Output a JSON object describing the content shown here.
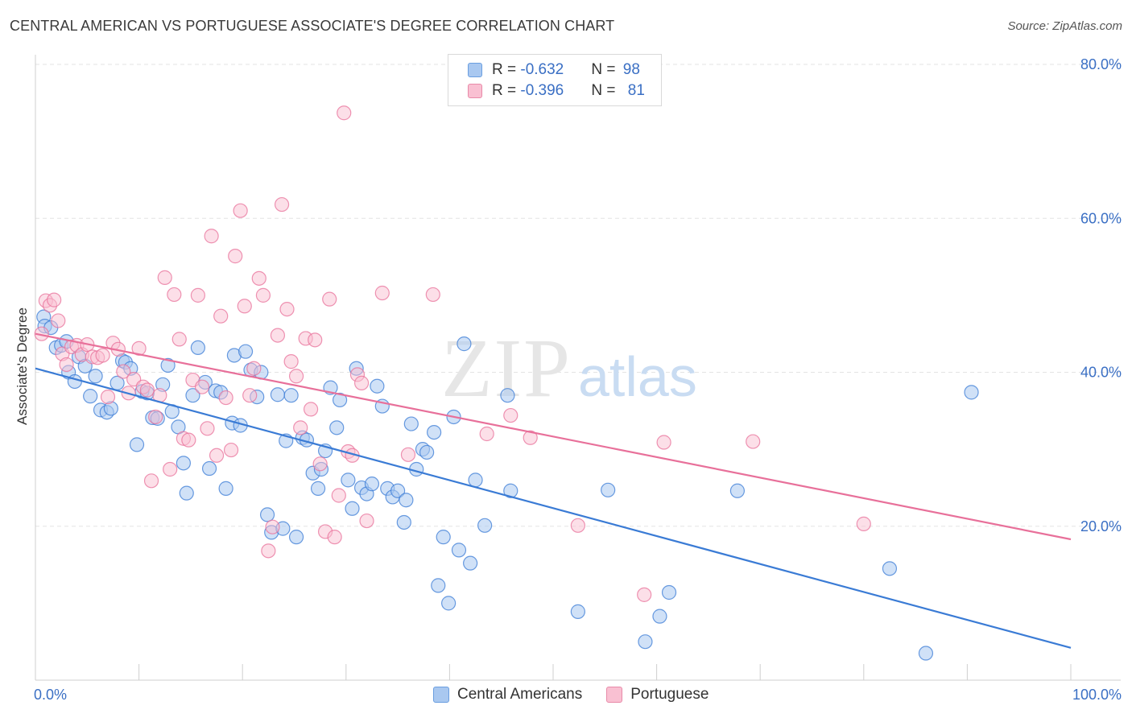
{
  "title": "CENTRAL AMERICAN VS PORTUGUESE ASSOCIATE'S DEGREE CORRELATION CHART",
  "source": "Source: ZipAtlas.com",
  "watermark": {
    "zip": "ZIP",
    "atlas": "atlas"
  },
  "legend_stats": [
    {
      "r_label": "R = ",
      "r_value": "-0.632",
      "n_label": "N = ",
      "n_value": "98",
      "color": "#a9c8f0",
      "border": "#6a9ee0"
    },
    {
      "r_label": "R = ",
      "r_value": "-0.396",
      "n_label": "N = ",
      "n_value": "81",
      "color": "#f9c0d2",
      "border": "#e88aa8"
    }
  ],
  "chart_data": {
    "type": "scatter",
    "title": "CENTRAL AMERICAN VS PORTUGUESE ASSOCIATE'S DEGREE CORRELATION CHART",
    "xlabel": "",
    "ylabel": "Associate's Degree",
    "xlim": [
      0,
      100
    ],
    "ylim": [
      0,
      80
    ],
    "x_tick_labels": [
      "0.0%",
      "100.0%"
    ],
    "y_ticks": [
      20,
      40,
      60,
      80
    ],
    "y_tick_labels": [
      "20.0%",
      "40.0%",
      "60.0%",
      "80.0%"
    ],
    "grid": true,
    "legend_position": "top-center and bottom",
    "series": [
      {
        "name": "Central Americans",
        "color": "#3a7bd5",
        "fill": "#a9c8f0",
        "trend": {
          "x": [
            0,
            100
          ],
          "y": [
            40.5,
            4.2
          ]
        },
        "points": [
          [
            0.8,
            47.2
          ],
          [
            0.9,
            46.0
          ],
          [
            1.5,
            45.8
          ],
          [
            2.0,
            43.2
          ],
          [
            2.5,
            43.5
          ],
          [
            3.0,
            44.0
          ],
          [
            3.2,
            40.0
          ],
          [
            3.8,
            38.8
          ],
          [
            4.2,
            42.0
          ],
          [
            4.8,
            40.8
          ],
          [
            5.3,
            36.9
          ],
          [
            5.8,
            39.5
          ],
          [
            6.3,
            35.1
          ],
          [
            6.9,
            34.8
          ],
          [
            7.3,
            35.3
          ],
          [
            7.9,
            38.6
          ],
          [
            8.4,
            41.5
          ],
          [
            8.7,
            41.3
          ],
          [
            9.2,
            40.5
          ],
          [
            9.8,
            30.6
          ],
          [
            10.3,
            37.5
          ],
          [
            10.8,
            37.3
          ],
          [
            11.3,
            34.1
          ],
          [
            11.8,
            34.0
          ],
          [
            12.3,
            38.4
          ],
          [
            12.8,
            40.9
          ],
          [
            13.2,
            34.9
          ],
          [
            13.8,
            32.9
          ],
          [
            14.3,
            28.2
          ],
          [
            14.6,
            24.3
          ],
          [
            15.2,
            37.0
          ],
          [
            15.7,
            43.2
          ],
          [
            16.4,
            38.7
          ],
          [
            16.8,
            27.5
          ],
          [
            17.4,
            37.6
          ],
          [
            17.9,
            37.4
          ],
          [
            18.4,
            24.9
          ],
          [
            19.0,
            33.4
          ],
          [
            19.2,
            42.2
          ],
          [
            19.8,
            33.1
          ],
          [
            20.3,
            42.7
          ],
          [
            20.8,
            40.3
          ],
          [
            21.4,
            36.8
          ],
          [
            21.8,
            40.0
          ],
          [
            22.4,
            21.5
          ],
          [
            22.8,
            19.2
          ],
          [
            23.4,
            37.1
          ],
          [
            23.9,
            19.7
          ],
          [
            24.2,
            31.1
          ],
          [
            24.7,
            37.0
          ],
          [
            25.2,
            18.6
          ],
          [
            25.8,
            31.5
          ],
          [
            26.2,
            31.2
          ],
          [
            26.8,
            26.9
          ],
          [
            27.3,
            24.9
          ],
          [
            27.6,
            27.4
          ],
          [
            28.0,
            29.8
          ],
          [
            28.5,
            38.0
          ],
          [
            29.1,
            32.8
          ],
          [
            29.4,
            36.4
          ],
          [
            30.2,
            26.0
          ],
          [
            30.6,
            22.3
          ],
          [
            31.0,
            40.5
          ],
          [
            31.5,
            25.0
          ],
          [
            32.0,
            24.2
          ],
          [
            32.5,
            25.5
          ],
          [
            33.0,
            38.2
          ],
          [
            33.5,
            35.6
          ],
          [
            34.0,
            24.9
          ],
          [
            34.5,
            23.8
          ],
          [
            35.0,
            24.6
          ],
          [
            35.6,
            20.5
          ],
          [
            35.8,
            23.4
          ],
          [
            36.3,
            33.3
          ],
          [
            36.8,
            27.4
          ],
          [
            37.4,
            30.0
          ],
          [
            37.8,
            29.6
          ],
          [
            38.5,
            32.2
          ],
          [
            38.9,
            12.3
          ],
          [
            39.4,
            18.6
          ],
          [
            39.9,
            10.0
          ],
          [
            40.4,
            34.2
          ],
          [
            40.9,
            16.9
          ],
          [
            41.4,
            43.7
          ],
          [
            42.0,
            15.2
          ],
          [
            42.5,
            26.0
          ],
          [
            43.4,
            20.1
          ],
          [
            45.6,
            37.0
          ],
          [
            45.9,
            24.6
          ],
          [
            52.4,
            8.9
          ],
          [
            55.3,
            24.7
          ],
          [
            58.9,
            5.0
          ],
          [
            60.3,
            8.3
          ],
          [
            61.2,
            11.4
          ],
          [
            67.8,
            24.6
          ],
          [
            82.5,
            14.5
          ],
          [
            86.0,
            3.5
          ],
          [
            90.4,
            37.4
          ]
        ]
      },
      {
        "name": "Portuguese",
        "color": "#e8709a",
        "fill": "#f9c0d2",
        "trend": {
          "x": [
            0,
            100
          ],
          "y": [
            45.0,
            18.3
          ]
        },
        "points": [
          [
            0.6,
            45.0
          ],
          [
            1.0,
            49.3
          ],
          [
            1.4,
            48.7
          ],
          [
            1.8,
            49.4
          ],
          [
            2.2,
            46.7
          ],
          [
            2.6,
            42.4
          ],
          [
            3.0,
            41.0
          ],
          [
            3.5,
            43.3
          ],
          [
            4.0,
            43.5
          ],
          [
            4.5,
            42.3
          ],
          [
            5.0,
            43.6
          ],
          [
            5.5,
            42.0
          ],
          [
            6.0,
            41.9
          ],
          [
            6.5,
            42.2
          ],
          [
            7.0,
            36.8
          ],
          [
            7.5,
            43.8
          ],
          [
            8.0,
            43.0
          ],
          [
            8.5,
            40.1
          ],
          [
            9.0,
            37.3
          ],
          [
            9.5,
            39.1
          ],
          [
            10.0,
            43.1
          ],
          [
            10.4,
            38.1
          ],
          [
            10.8,
            37.7
          ],
          [
            11.2,
            25.9
          ],
          [
            11.6,
            34.2
          ],
          [
            12.0,
            37.0
          ],
          [
            12.5,
            52.3
          ],
          [
            13.0,
            27.4
          ],
          [
            13.4,
            50.1
          ],
          [
            13.9,
            44.3
          ],
          [
            14.3,
            31.4
          ],
          [
            14.8,
            31.2
          ],
          [
            15.2,
            39.0
          ],
          [
            15.7,
            50.0
          ],
          [
            16.1,
            38.1
          ],
          [
            16.6,
            32.7
          ],
          [
            17.0,
            57.7
          ],
          [
            17.5,
            29.2
          ],
          [
            17.9,
            47.3
          ],
          [
            18.4,
            36.7
          ],
          [
            18.9,
            29.9
          ],
          [
            19.3,
            55.1
          ],
          [
            19.8,
            61.0
          ],
          [
            20.2,
            48.6
          ],
          [
            20.7,
            37.0
          ],
          [
            21.1,
            40.5
          ],
          [
            21.6,
            52.2
          ],
          [
            22.0,
            50.0
          ],
          [
            22.5,
            16.8
          ],
          [
            22.9,
            19.9
          ],
          [
            23.4,
            44.8
          ],
          [
            23.8,
            61.8
          ],
          [
            24.3,
            48.2
          ],
          [
            24.7,
            41.4
          ],
          [
            25.2,
            39.5
          ],
          [
            25.6,
            32.8
          ],
          [
            26.1,
            44.4
          ],
          [
            26.6,
            35.2
          ],
          [
            27.0,
            44.2
          ],
          [
            27.5,
            28.1
          ],
          [
            28.0,
            19.3
          ],
          [
            28.4,
            49.5
          ],
          [
            28.9,
            18.6
          ],
          [
            29.3,
            24.0
          ],
          [
            29.8,
            73.7
          ],
          [
            30.2,
            29.7
          ],
          [
            30.6,
            29.2
          ],
          [
            31.1,
            39.7
          ],
          [
            31.5,
            38.6
          ],
          [
            32.0,
            20.7
          ],
          [
            33.5,
            50.3
          ],
          [
            36.0,
            29.3
          ],
          [
            38.4,
            50.1
          ],
          [
            43.6,
            32.0
          ],
          [
            45.9,
            34.4
          ],
          [
            47.8,
            31.5
          ],
          [
            52.4,
            20.1
          ],
          [
            58.8,
            11.1
          ],
          [
            60.7,
            30.9
          ],
          [
            69.3,
            31.0
          ],
          [
            80.0,
            20.3
          ]
        ]
      }
    ]
  }
}
